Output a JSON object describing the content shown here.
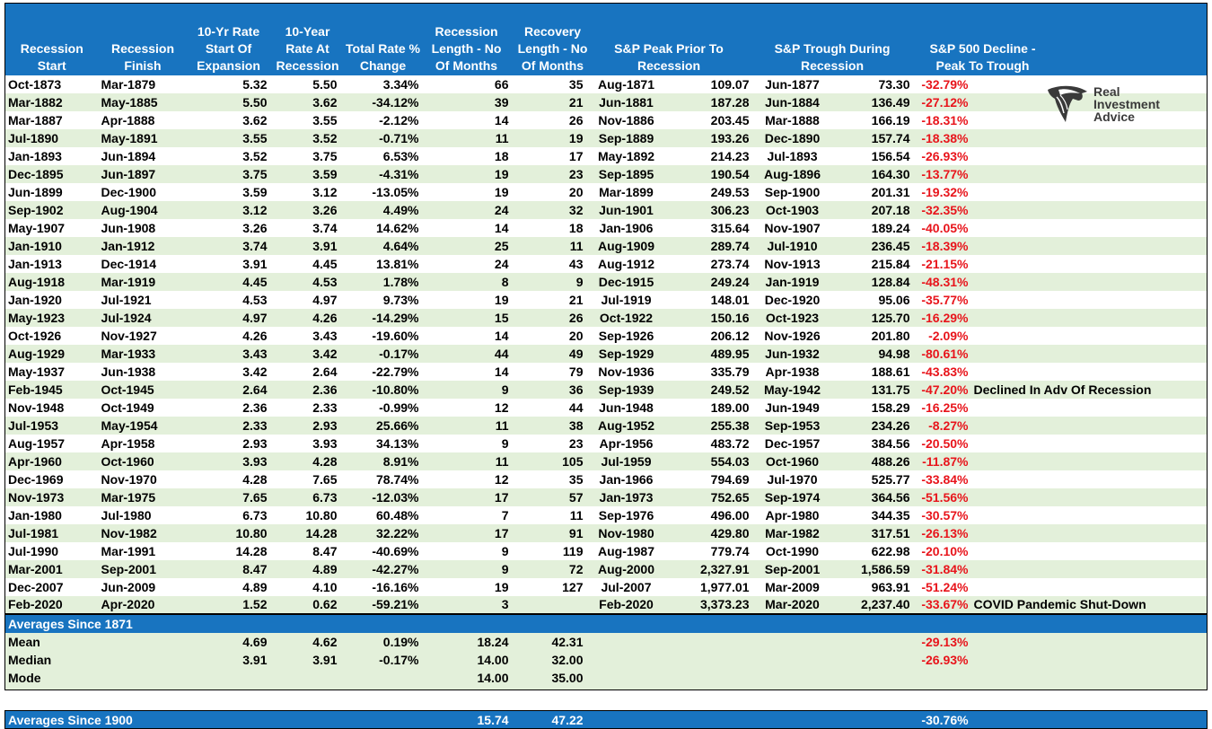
{
  "headers": [
    "Recession Start",
    "Recession Finish",
    "10-Yr Rate Start Of Expansion",
    "10-Year Rate At Recession",
    "Total Rate % Change",
    "Recession Length - No Of Months",
    "Recovery Length - No Of Months",
    "S&P Peak Prior To Recession",
    "S&P Trough During Recession",
    "S&P 500 Decline - Peak To Trough"
  ],
  "rows": [
    [
      "Oct-1873",
      "Mar-1879",
      "5.32",
      "5.50",
      "3.34%",
      "66",
      "35",
      "Aug-1871",
      "109.07",
      "Jun-1877",
      "73.30",
      "-32.79%",
      ""
    ],
    [
      "Mar-1882",
      "May-1885",
      "5.50",
      "3.62",
      "-34.12%",
      "39",
      "21",
      "Jun-1881",
      "187.28",
      "Jun-1884",
      "136.49",
      "-27.12%",
      ""
    ],
    [
      "Mar-1887",
      "Apr-1888",
      "3.62",
      "3.55",
      "-2.12%",
      "14",
      "26",
      "Nov-1886",
      "203.45",
      "Mar-1888",
      "166.19",
      "-18.31%",
      ""
    ],
    [
      "Jul-1890",
      "May-1891",
      "3.55",
      "3.52",
      "-0.71%",
      "11",
      "19",
      "Sep-1889",
      "193.26",
      "Dec-1890",
      "157.74",
      "-18.38%",
      ""
    ],
    [
      "Jan-1893",
      "Jun-1894",
      "3.52",
      "3.75",
      "6.53%",
      "18",
      "17",
      "May-1892",
      "214.23",
      "Jul-1893",
      "156.54",
      "-26.93%",
      ""
    ],
    [
      "Dec-1895",
      "Jun-1897",
      "3.75",
      "3.59",
      "-4.31%",
      "19",
      "23",
      "Sep-1895",
      "190.54",
      "Aug-1896",
      "164.30",
      "-13.77%",
      ""
    ],
    [
      "Jun-1899",
      "Dec-1900",
      "3.59",
      "3.12",
      "-13.05%",
      "19",
      "20",
      "Mar-1899",
      "249.53",
      "Sep-1900",
      "201.31",
      "-19.32%",
      ""
    ],
    [
      "Sep-1902",
      "Aug-1904",
      "3.12",
      "3.26",
      "4.49%",
      "24",
      "32",
      "Jun-1901",
      "306.23",
      "Oct-1903",
      "207.18",
      "-32.35%",
      ""
    ],
    [
      "May-1907",
      "Jun-1908",
      "3.26",
      "3.74",
      "14.62%",
      "14",
      "18",
      "Jan-1906",
      "315.64",
      "Nov-1907",
      "189.24",
      "-40.05%",
      ""
    ],
    [
      "Jan-1910",
      "Jan-1912",
      "3.74",
      "3.91",
      "4.64%",
      "25",
      "11",
      "Aug-1909",
      "289.74",
      "Jul-1910",
      "236.45",
      "-18.39%",
      ""
    ],
    [
      "Jan-1913",
      "Dec-1914",
      "3.91",
      "4.45",
      "13.81%",
      "24",
      "43",
      "Aug-1912",
      "273.74",
      "Nov-1913",
      "215.84",
      "-21.15%",
      ""
    ],
    [
      "Aug-1918",
      "Mar-1919",
      "4.45",
      "4.53",
      "1.78%",
      "8",
      "9",
      "Dec-1915",
      "249.24",
      "Jan-1919",
      "128.84",
      "-48.31%",
      ""
    ],
    [
      "Jan-1920",
      "Jul-1921",
      "4.53",
      "4.97",
      "9.73%",
      "19",
      "21",
      "Jul-1919",
      "148.01",
      "Dec-1920",
      "95.06",
      "-35.77%",
      ""
    ],
    [
      "May-1923",
      "Jul-1924",
      "4.97",
      "4.26",
      "-14.29%",
      "15",
      "26",
      "Oct-1922",
      "150.16",
      "Oct-1923",
      "125.70",
      "-16.29%",
      ""
    ],
    [
      "Oct-1926",
      "Nov-1927",
      "4.26",
      "3.43",
      "-19.60%",
      "14",
      "20",
      "Sep-1926",
      "206.12",
      "Nov-1926",
      "201.80",
      "-2.09%",
      ""
    ],
    [
      "Aug-1929",
      "Mar-1933",
      "3.43",
      "3.42",
      "-0.17%",
      "44",
      "49",
      "Sep-1929",
      "489.95",
      "Jun-1932",
      "94.98",
      "-80.61%",
      ""
    ],
    [
      "May-1937",
      "Jun-1938",
      "3.42",
      "2.64",
      "-22.79%",
      "14",
      "79",
      "Nov-1936",
      "335.79",
      "Apr-1938",
      "188.61",
      "-43.83%",
      ""
    ],
    [
      "Feb-1945",
      "Oct-1945",
      "2.64",
      "2.36",
      "-10.80%",
      "9",
      "36",
      "Sep-1939",
      "249.52",
      "May-1942",
      "131.75",
      "-47.20%",
      "Declined In Adv Of Recession"
    ],
    [
      "Nov-1948",
      "Oct-1949",
      "2.36",
      "2.33",
      "-0.99%",
      "12",
      "44",
      "Jun-1948",
      "189.00",
      "Jun-1949",
      "158.29",
      "-16.25%",
      ""
    ],
    [
      "Jul-1953",
      "May-1954",
      "2.33",
      "2.93",
      "25.66%",
      "11",
      "38",
      "Aug-1952",
      "255.38",
      "Sep-1953",
      "234.26",
      "-8.27%",
      ""
    ],
    [
      "Aug-1957",
      "Apr-1958",
      "2.93",
      "3.93",
      "34.13%",
      "9",
      "23",
      "Apr-1956",
      "483.72",
      "Dec-1957",
      "384.56",
      "-20.50%",
      ""
    ],
    [
      "Apr-1960",
      "Oct-1960",
      "3.93",
      "4.28",
      "8.91%",
      "11",
      "105",
      "Jul-1959",
      "554.03",
      "Oct-1960",
      "488.26",
      "-11.87%",
      ""
    ],
    [
      "Dec-1969",
      "Nov-1970",
      "4.28",
      "7.65",
      "78.74%",
      "12",
      "35",
      "Jan-1966",
      "794.69",
      "Jul-1970",
      "525.77",
      "-33.84%",
      ""
    ],
    [
      "Nov-1973",
      "Mar-1975",
      "7.65",
      "6.73",
      "-12.03%",
      "17",
      "57",
      "Jan-1973",
      "752.65",
      "Sep-1974",
      "364.56",
      "-51.56%",
      ""
    ],
    [
      "Jan-1980",
      "Jul-1980",
      "6.73",
      "10.80",
      "60.48%",
      "7",
      "11",
      "Sep-1976",
      "496.00",
      "Apr-1980",
      "344.35",
      "-30.57%",
      ""
    ],
    [
      "Jul-1981",
      "Nov-1982",
      "10.80",
      "14.28",
      "32.22%",
      "17",
      "91",
      "Nov-1980",
      "429.80",
      "Mar-1982",
      "317.51",
      "-26.13%",
      ""
    ],
    [
      "Jul-1990",
      "Mar-1991",
      "14.28",
      "8.47",
      "-40.69%",
      "9",
      "119",
      "Aug-1987",
      "779.74",
      "Oct-1990",
      "622.98",
      "-20.10%",
      ""
    ],
    [
      "Mar-2001",
      "Sep-2001",
      "8.47",
      "4.89",
      "-42.27%",
      "9",
      "72",
      "Aug-2000",
      "2,327.91",
      "Sep-2001",
      "1,586.59",
      "-31.84%",
      ""
    ],
    [
      "Dec-2007",
      "Jun-2009",
      "4.89",
      "4.10",
      "-16.16%",
      "19",
      "127",
      "Jul-2007",
      "1,977.01",
      "Mar-2009",
      "963.91",
      "-51.24%",
      ""
    ],
    [
      "Feb-2020",
      "Apr-2020",
      "1.52",
      "0.62",
      "-59.21%",
      "3",
      "",
      "Feb-2020",
      "3,373.23",
      "Mar-2020",
      "2,237.40",
      "-33.67%",
      "COVID Pandemic Shut-Down"
    ]
  ],
  "averages_1871": {
    "title": "Averages Since 1871",
    "rows": [
      [
        "Mean",
        "",
        "4.69",
        "4.62",
        "0.19%",
        "18.24",
        "42.31",
        "",
        "",
        "",
        "",
        "-29.13%"
      ],
      [
        "Median",
        "",
        "3.91",
        "3.91",
        "-0.17%",
        "14.00",
        "32.00",
        "",
        "",
        "",
        "",
        "-26.93%"
      ],
      [
        "Mode",
        "",
        "",
        "",
        "",
        "14.00",
        "35.00",
        "",
        "",
        "",
        "",
        ""
      ]
    ]
  },
  "averages_1900": {
    "title": "Averages Since 1900",
    "recession_length": "15.74",
    "recovery_length": "47.22",
    "decline": "-30.76%"
  },
  "logo": {
    "line1": "Real",
    "line2": "Investment",
    "line3": "Advice",
    "icon": "eagle-head-icon",
    "color": "#3a3a3a"
  },
  "colors": {
    "header": "#1874c0",
    "band": "#e3f0da",
    "negative": "#e8141b"
  }
}
